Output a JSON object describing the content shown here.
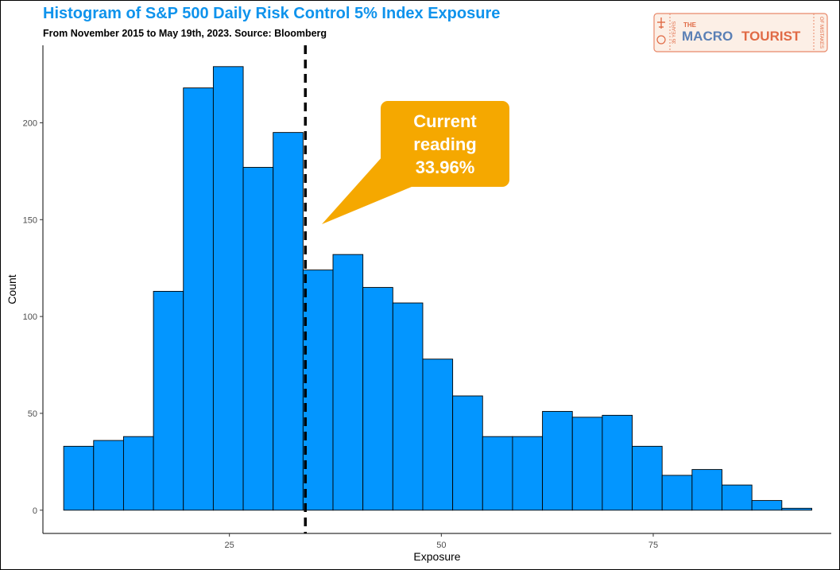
{
  "title": "Histogram of S&P 500 Daily Risk Control 5% Index Exposure",
  "subtitle": "From November 2015 to May 19th, 2023. Source: Bloomberg",
  "logo": {
    "the": "THE",
    "macro": "MACRO",
    "tourist": "TOURIST",
    "left_text": "35 YEARS",
    "right_text": "OF MISTAKES"
  },
  "callout": {
    "lines": [
      "Current",
      "reading",
      "33.96%"
    ],
    "color": "#F5A800"
  },
  "colors": {
    "bar_fill": "#0396FF",
    "bar_stroke": "#000000",
    "title": "#0F93EC"
  },
  "chart_data": {
    "type": "histogram",
    "xlabel": "Exposure",
    "ylabel": "Count",
    "xlim": [
      3,
      96
    ],
    "ylim": [
      -12,
      240
    ],
    "x_ticks": [
      25,
      50,
      75
    ],
    "y_ticks": [
      0,
      50,
      100,
      150,
      200
    ],
    "bin_width": 3.53,
    "bin_start": 5.45,
    "counts": [
      33,
      36,
      38,
      113,
      218,
      229,
      177,
      195,
      124,
      132,
      115,
      107,
      78,
      59,
      38,
      38,
      51,
      48,
      49,
      33,
      18,
      21,
      13,
      5,
      1
    ],
    "vline": {
      "x": 33.96,
      "style": "dashed"
    },
    "grid": false,
    "legend": "none"
  }
}
